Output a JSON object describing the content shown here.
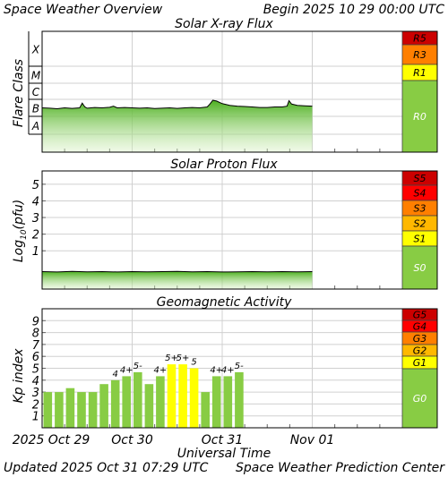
{
  "header": {
    "title": "Space Weather Overview",
    "begin": "Begin 2025 10 29 00:00 UTC"
  },
  "footer": {
    "updated": "Updated 2025 Oct 31 07:29 UTC",
    "credit": "Space Weather Prediction Center"
  },
  "time_axis": {
    "label": "Universal Time",
    "ticks": [
      "2025 Oct 29",
      "Oct 30",
      "Oct 31",
      "Nov 01"
    ]
  },
  "chart_data": [
    {
      "type": "area",
      "title": "Solar X-ray Flux",
      "ylabel": "Flare Class",
      "x_unit": "hours since 2025 10 29 00:00 UTC",
      "xlim": [
        0,
        72
      ],
      "y_classes": [
        "A",
        "B",
        "C",
        "M",
        "X"
      ],
      "series": [
        {
          "x": [
            0,
            2,
            4,
            6,
            8,
            10,
            10.7,
            11.4,
            12,
            14,
            16,
            18,
            19,
            20,
            22,
            24,
            26,
            28,
            30,
            32,
            34,
            36,
            38,
            40,
            42,
            44,
            44.7,
            45.5,
            46.5,
            48,
            50,
            52,
            54,
            56,
            58,
            60,
            62,
            64,
            65.3,
            65.8,
            66.5,
            68,
            70,
            72
          ],
          "y": [
            1.5,
            1.48,
            1.45,
            1.5,
            1.47,
            1.5,
            1.78,
            1.55,
            1.48,
            1.52,
            1.5,
            1.53,
            1.6,
            1.5,
            1.52,
            1.5,
            1.48,
            1.5,
            1.46,
            1.48,
            1.5,
            1.47,
            1.5,
            1.52,
            1.5,
            1.55,
            1.72,
            1.95,
            1.9,
            1.75,
            1.65,
            1.6,
            1.58,
            1.55,
            1.52,
            1.52,
            1.55,
            1.55,
            1.6,
            1.92,
            1.72,
            1.65,
            1.62,
            1.6
          ]
        }
      ],
      "scale": {
        "labels": [
          "R5",
          "R3",
          "R1",
          "R0"
        ],
        "colors": [
          "#cc0000",
          "#ff7f00",
          "#ffff00",
          "#88cc44"
        ]
      }
    },
    {
      "type": "area",
      "title": "Solar Proton Flux",
      "ylabel": "Log10(pfu)",
      "x_unit": "hours since 2025 10 29 00:00 UTC",
      "xlim": [
        0,
        72
      ],
      "ylim": [
        -1.3,
        5.8
      ],
      "yticks": [
        1,
        2,
        3,
        4,
        5
      ],
      "series": [
        {
          "x": [
            0,
            4,
            8,
            12,
            16,
            20,
            24,
            28,
            32,
            36,
            40,
            44,
            48,
            52,
            56,
            60,
            64,
            68,
            72
          ],
          "y": [
            -0.25,
            -0.27,
            -0.24,
            -0.26,
            -0.25,
            -0.27,
            -0.25,
            -0.26,
            -0.25,
            -0.24,
            -0.26,
            -0.25,
            -0.27,
            -0.26,
            -0.25,
            -0.26,
            -0.25,
            -0.26,
            -0.25
          ]
        }
      ],
      "scale": {
        "labels": [
          "S5",
          "S4",
          "S3",
          "S2",
          "S1",
          "S0"
        ],
        "colors": [
          "#cc0000",
          "#ff0000",
          "#ff7f00",
          "#ffb800",
          "#ffff00",
          "#88cc44"
        ]
      }
    },
    {
      "type": "bar",
      "title": "Geomagnetic Activity",
      "ylabel": "Kp index",
      "x_unit": "hours since 2025 10 29 00:00 UTC",
      "xlim": [
        0,
        72
      ],
      "ylim": [
        0,
        10
      ],
      "yticks": [
        1,
        2,
        3,
        4,
        5,
        6,
        7,
        8,
        9
      ],
      "bar_width_hours": 3,
      "values": [
        3,
        3,
        3.33,
        3,
        3,
        3.67,
        4,
        4.33,
        4.67,
        3.67,
        4.33,
        5.33,
        5.33,
        5,
        3,
        4.33,
        4.33,
        4.67
      ],
      "labels": [
        "",
        "",
        "",
        "",
        "",
        "",
        "4",
        "4+",
        "5-",
        "",
        "4+",
        "5+",
        "5+",
        "5",
        "",
        "4+",
        "4+",
        "5-"
      ],
      "colors": [
        "#88cc44",
        "#88cc44",
        "#88cc44",
        "#88cc44",
        "#88cc44",
        "#88cc44",
        "#88cc44",
        "#88cc44",
        "#88cc44",
        "#88cc44",
        "#88cc44",
        "#ffff00",
        "#ffff00",
        "#ffff00",
        "#88cc44",
        "#88cc44",
        "#88cc44",
        "#88cc44"
      ],
      "scale": {
        "labels": [
          "G5",
          "G4",
          "G3",
          "G2",
          "G1",
          "G0"
        ],
        "colors": [
          "#cc0000",
          "#ff0000",
          "#ff7f00",
          "#ffb800",
          "#ffff00",
          "#88cc44"
        ]
      }
    }
  ]
}
